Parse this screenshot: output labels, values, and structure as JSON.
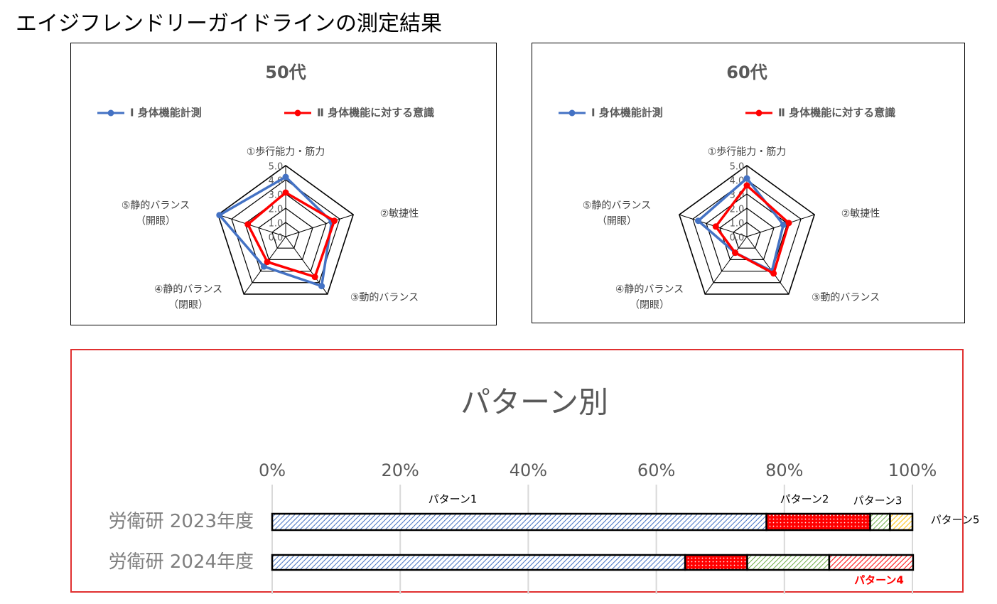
{
  "title": "エイジフレンドリーガイドラインの測定結果",
  "chart_data": [
    {
      "type": "radar",
      "title": "50代",
      "categories": [
        "①歩行能力・筋力",
        "②敏捷性",
        "③動的バランス",
        "④静的バランス\n（閉眼）",
        "⑤静的バランス\n（開眼）"
      ],
      "series": [
        {
          "name": "Ⅰ 身体機能計測",
          "color": "#4472c4",
          "values": [
            4.2,
            3.4,
            4.3,
            2.6,
            4.9
          ]
        },
        {
          "name": "Ⅱ 身体機能に対する意識",
          "color": "#ff0000",
          "values": [
            3.1,
            3.6,
            3.5,
            2.2,
            2.8
          ]
        }
      ],
      "ylim": [
        0,
        5
      ],
      "yticks": [
        {
          "value": 0,
          "label": "0.0"
        },
        {
          "value": 1,
          "label": "1.0"
        },
        {
          "value": 2,
          "label": "2.0"
        },
        {
          "value": 3,
          "label": "3.0"
        },
        {
          "value": 4,
          "label": "4.0"
        },
        {
          "value": 5,
          "label": "5.0"
        }
      ]
    },
    {
      "type": "radar",
      "title": "60代",
      "categories": [
        "①歩行能力・筋力",
        "②敏捷性",
        "③動的バランス",
        "④静的バランス\n（閉眼）",
        "⑤静的バランス\n（開眼）"
      ],
      "series": [
        {
          "name": "Ⅰ 身体機能計測",
          "color": "#4472c4",
          "values": [
            4.1,
            2.7,
            3.0,
            1.4,
            3.6
          ]
        },
        {
          "name": "Ⅱ 身体機能に対する意識",
          "color": "#ff0000",
          "values": [
            3.6,
            3.1,
            3.2,
            1.4,
            2.3
          ]
        }
      ],
      "ylim": [
        0,
        5
      ],
      "yticks": [
        {
          "value": 0,
          "label": "0.0"
        },
        {
          "value": 1,
          "label": "1.0"
        },
        {
          "value": 2,
          "label": "2.0"
        },
        {
          "value": 3,
          "label": "3.0"
        },
        {
          "value": 4,
          "label": "4.0"
        },
        {
          "value": 5,
          "label": "5.0"
        }
      ]
    },
    {
      "type": "stacked-bar-horizontal",
      "title": "パターン別",
      "categories": [
        "労衛研 2023年度",
        "労衛研 2024年度"
      ],
      "series": [
        {
          "name": "パターン1",
          "color": "#4472c4",
          "pattern": "hatch",
          "values": [
            77.2,
            64.5
          ]
        },
        {
          "name": "パターン2",
          "color": "#ff0000",
          "pattern": "dots",
          "values": [
            16.2,
            9.7
          ]
        },
        {
          "name": "パターン3",
          "color": "#70ad47",
          "pattern": "hatch",
          "values": [
            3.1,
            12.8
          ]
        },
        {
          "name": "パターン4",
          "color": "#ff0000",
          "pattern": "hatch",
          "values": [
            0,
            13.1
          ]
        },
        {
          "name": "パターン5",
          "color": "#ffc000",
          "pattern": "hatch",
          "values": [
            3.5,
            0
          ]
        }
      ],
      "xlim": [
        0,
        100
      ],
      "xticks": [
        {
          "value": 0,
          "label": "0%"
        },
        {
          "value": 20,
          "label": "20%"
        },
        {
          "value": 40,
          "label": "40%"
        },
        {
          "value": 60,
          "label": "60%"
        },
        {
          "value": 80,
          "label": "80%"
        },
        {
          "value": 100,
          "label": "100%"
        }
      ],
      "grid": true
    }
  ]
}
